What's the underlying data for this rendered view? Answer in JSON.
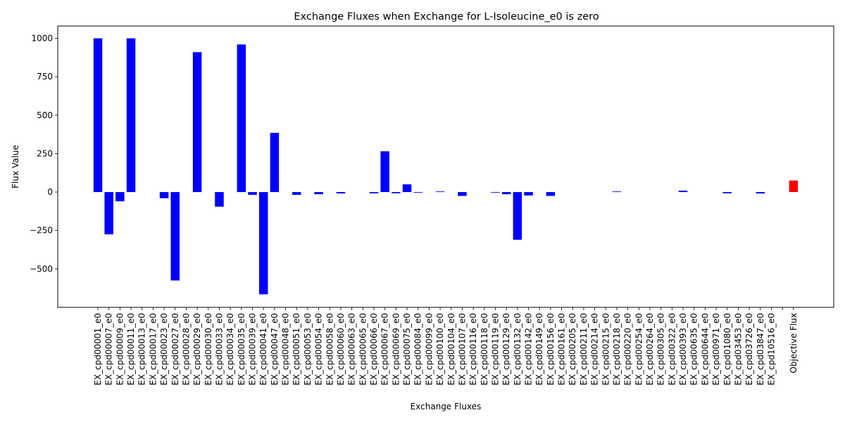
{
  "chart_data": {
    "type": "bar",
    "title": "Exchange Fluxes when Exchange for L-Isoleucine_e0 is zero",
    "xlabel": "Exchange Fluxes",
    "ylabel": "Flux Value",
    "ylim": [
      -750,
      1080
    ],
    "yticks": [
      -500,
      -250,
      0,
      250,
      500,
      750,
      1000
    ],
    "ytick_labels": [
      "−500",
      "−250",
      "0",
      "250",
      "500",
      "750",
      "1000"
    ],
    "grid": false,
    "legend": "none",
    "colors": {
      "default": "#0000ff",
      "objective": "#ff0000"
    },
    "categories": [
      "EX_cpd00001_e0",
      "EX_cpd00007_e0",
      "EX_cpd00009_e0",
      "EX_cpd00011_e0",
      "EX_cpd00013_e0",
      "EX_cpd00017_e0",
      "EX_cpd00023_e0",
      "EX_cpd00027_e0",
      "EX_cpd00028_e0",
      "EX_cpd00029_e0",
      "EX_cpd00030_e0",
      "EX_cpd00033_e0",
      "EX_cpd00034_e0",
      "EX_cpd00035_e0",
      "EX_cpd00039_e0",
      "EX_cpd00041_e0",
      "EX_cpd00047_e0",
      "EX_cpd00048_e0",
      "EX_cpd00051_e0",
      "EX_cpd00053_e0",
      "EX_cpd00054_e0",
      "EX_cpd00058_e0",
      "EX_cpd00060_e0",
      "EX_cpd00063_e0",
      "EX_cpd00065_e0",
      "EX_cpd00066_e0",
      "EX_cpd00067_e0",
      "EX_cpd00069_e0",
      "EX_cpd00075_e0",
      "EX_cpd00084_e0",
      "EX_cpd00099_e0",
      "EX_cpd00100_e0",
      "EX_cpd00104_e0",
      "EX_cpd00107_e0",
      "EX_cpd00116_e0",
      "EX_cpd00118_e0",
      "EX_cpd00119_e0",
      "EX_cpd00129_e0",
      "EX_cpd00132_e0",
      "EX_cpd00142_e0",
      "EX_cpd00149_e0",
      "EX_cpd00156_e0",
      "EX_cpd00161_e0",
      "EX_cpd00205_e0",
      "EX_cpd00211_e0",
      "EX_cpd00214_e0",
      "EX_cpd00215_e0",
      "EX_cpd00218_e0",
      "EX_cpd00220_e0",
      "EX_cpd00254_e0",
      "EX_cpd00264_e0",
      "EX_cpd00305_e0",
      "EX_cpd00322_e0",
      "EX_cpd00393_e0",
      "EX_cpd00635_e0",
      "EX_cpd00644_e0",
      "EX_cpd00971_e0",
      "EX_cpd01080_e0",
      "EX_cpd03453_e0",
      "EX_cpd03726_e0",
      "EX_cpd03847_e0",
      "EX_cpd10516_e0",
      "",
      "Objective Flux"
    ],
    "values": [
      1000,
      -275,
      -60,
      1000,
      0,
      0,
      -40,
      -575,
      0,
      910,
      0,
      -95,
      0,
      960,
      -18,
      -665,
      385,
      0,
      -18,
      0,
      -14,
      0,
      -9,
      0,
      0,
      -8,
      265,
      -8,
      50,
      -4,
      0,
      4,
      0,
      -25,
      0,
      0,
      -4,
      -14,
      -310,
      -22,
      0,
      -25,
      0,
      0,
      0,
      0,
      0,
      4,
      0,
      0,
      0,
      0,
      0,
      9,
      0,
      0,
      0,
      -8,
      0,
      0,
      -9,
      0,
      0,
      75
    ],
    "highlight_index": 63
  }
}
